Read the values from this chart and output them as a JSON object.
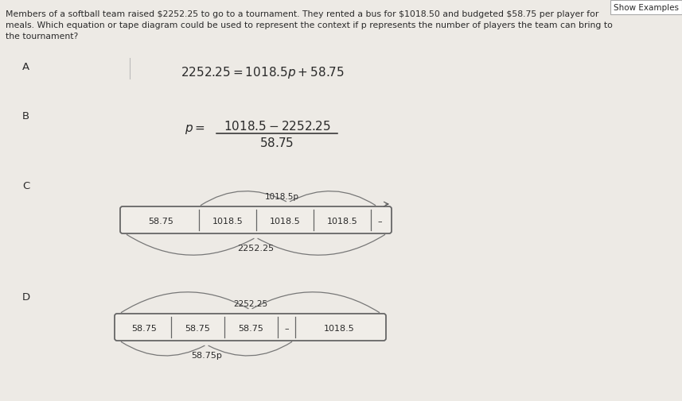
{
  "bg_color": "#edeae5",
  "title_text": "Show Examples",
  "problem_line1": "Members of a softball team raised $2252.25 to go to a tournament. They rented a bus for $1018.50 and budgeted $58.75 per player for",
  "problem_line2": "meals. Which equation or tape diagram could be used to represent the context if p represents the number of players the team can bring to",
  "problem_line3": "the tournament?",
  "option_A_label": "A",
  "option_B_label": "B",
  "option_C_label": "C",
  "option_D_label": "D",
  "option_C_cells": [
    "58.75",
    "1018.5",
    "1018.5",
    "1018.5",
    "–"
  ],
  "option_C_brace_bottom": "2252.25",
  "option_C_brace_top": "1018.5p",
  "option_D_cells": [
    "58.75",
    "58.75",
    "58.75",
    "–",
    "1018.5"
  ],
  "option_D_brace_bottom": "58.75p",
  "option_D_brace_top": "2252.25",
  "font_color": "#2a2a2a",
  "box_edge_color": "#666666",
  "box_fill_color": "#f0ede8"
}
